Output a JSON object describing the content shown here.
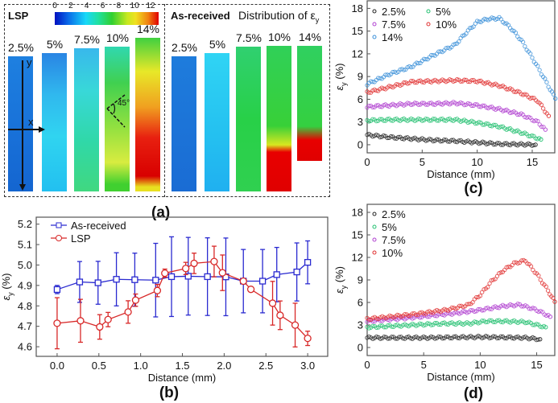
{
  "panel_a": {
    "label": "(a)",
    "lsp_title": "LSP",
    "asreceived_title": "As-received",
    "distribution_title": "Distribution of ε",
    "distribution_sub": "y",
    "colorbar_ticks": [
      "0",
      "2",
      "4",
      "6",
      "8",
      "10",
      "12"
    ],
    "colorbar_range": [
      0,
      13
    ],
    "axis_x": "x",
    "axis_y": "y",
    "angle": "45°",
    "lsp_strips": [
      "2.5%",
      "5%",
      "7.5%",
      "10%",
      "14%"
    ],
    "asreceived_strips": [
      "2.5%",
      "5%",
      "7.5%",
      "10%",
      "14%"
    ]
  },
  "chart_data": [
    {
      "id": "b",
      "panel_label": "(b)",
      "type": "line",
      "xlabel": "Distance (mm)",
      "ylabel": "ε",
      "ylabel_sub": "y",
      "ylabel_unit": " (%)",
      "xlim": [
        -0.25,
        3.24
      ],
      "ylim": [
        4.553,
        5.234
      ],
      "xticks": [
        0.0,
        0.5,
        1.0,
        1.5,
        2.0,
        2.5,
        3.0
      ],
      "xtick_labels": [
        "0.0",
        "0.5",
        "1.0",
        "1.5",
        "2.0",
        "2.5",
        "3.0"
      ],
      "yticks": [
        4.6,
        4.7,
        4.8,
        4.9,
        5.0,
        5.1,
        5.2
      ],
      "ytick_labels": [
        "4.6",
        "4.7",
        "4.8",
        "4.9",
        "5.0",
        "5.1",
        "5.2"
      ],
      "legend": "top-left",
      "grid": false,
      "series": [
        {
          "name": "As-received",
          "color": "#2a2ad0",
          "marker": "square",
          "x": [
            0,
            0.27,
            0.49,
            0.71,
            0.93,
            1.18,
            1.37,
            1.57,
            1.8,
            2.02,
            2.23,
            2.46,
            2.63,
            2.87,
            3.0
          ],
          "y": [
            4.88,
            4.917,
            4.913,
            4.93,
            4.928,
            4.926,
            4.943,
            4.945,
            4.943,
            4.942,
            4.921,
            4.921,
            4.953,
            4.966,
            5.013
          ],
          "err": [
            0.02,
            0.1,
            0.105,
            0.13,
            0.13,
            0.18,
            0.195,
            0.19,
            0.19,
            0.19,
            0.155,
            0.155,
            0.133,
            0.142,
            0.105
          ]
        },
        {
          "name": "LSP",
          "color": "#d82828",
          "marker": "circle",
          "x": [
            0,
            0.28,
            0.51,
            0.61,
            0.85,
            0.94,
            1.2,
            1.29,
            1.54,
            1.64,
            1.88,
            1.98,
            2.23,
            2.32,
            2.58,
            2.67,
            2.85,
            3.0
          ],
          "y": [
            4.715,
            4.727,
            4.697,
            4.733,
            4.77,
            4.828,
            4.875,
            4.96,
            4.983,
            5.008,
            5.017,
            4.962,
            4.921,
            4.881,
            4.813,
            4.754,
            4.706,
            4.641
          ],
          "err": [
            0.125,
            0.105,
            0.06,
            0.035,
            0.055,
            0.03,
            0.03,
            0.02,
            0.03,
            0.05,
            0.075,
            0.087,
            0.01,
            0.01,
            0.107,
            0.07,
            0.107,
            0.035
          ]
        }
      ]
    },
    {
      "id": "c",
      "panel_label": "(c)",
      "type": "scatter",
      "xlabel": "Distance (mm)",
      "ylabel": "ε",
      "ylabel_sub": "y",
      "ylabel_unit": " (%)",
      "xlim": [
        0,
        17.05
      ],
      "ylim": [
        -1.07,
        19.0
      ],
      "xticks": [
        0,
        5,
        10,
        15
      ],
      "xtick_labels": [
        "0",
        "5",
        "10",
        "15"
      ],
      "yticks": [
        0,
        3,
        6,
        9,
        12,
        15,
        18
      ],
      "ytick_labels": [
        "0",
        "3",
        "6",
        "9",
        "12",
        "15",
        "18"
      ],
      "legend": "top-left",
      "grid": false,
      "series": [
        {
          "name": "2.5%",
          "color": "#222222",
          "x": [
            0,
            2,
            4,
            6,
            8,
            10,
            12,
            14,
            15.3
          ],
          "y": [
            1.3,
            1.0,
            0.8,
            0.6,
            0.5,
            0.3,
            0.1,
            0.05,
            0.0
          ]
        },
        {
          "name": "5%",
          "color": "#22c070",
          "x": [
            0,
            2,
            4,
            6,
            8,
            10,
            12,
            14,
            15.8
          ],
          "y": [
            3.2,
            3.3,
            3.3,
            3.3,
            3.3,
            2.9,
            2.4,
            1.6,
            0.7
          ]
        },
        {
          "name": "7.5%",
          "color": "#b040d0",
          "x": [
            0,
            2,
            4,
            6,
            8,
            10,
            12,
            14,
            15.5,
            16.2
          ],
          "y": [
            5.0,
            5.2,
            5.4,
            5.4,
            5.5,
            5.2,
            4.7,
            4.0,
            3.0,
            2.0
          ]
        },
        {
          "name": "10%",
          "color": "#e03030",
          "x": [
            0,
            2,
            4,
            6,
            8,
            10,
            12,
            14,
            15.5,
            16.5
          ],
          "y": [
            6.9,
            7.6,
            8.3,
            8.4,
            8.5,
            8.4,
            7.8,
            6.8,
            5.8,
            3.8
          ]
        },
        {
          "name": "14%",
          "color": "#3a8fd8",
          "x": [
            0,
            2,
            4,
            6,
            8,
            9,
            10,
            11,
            12,
            13,
            14,
            15,
            16,
            17.1
          ],
          "y": [
            8.0,
            9.3,
            10.3,
            11.8,
            13.2,
            14.8,
            16.2,
            16.6,
            16.7,
            15.5,
            13.8,
            11.5,
            9.0,
            6.1
          ]
        }
      ]
    },
    {
      "id": "d",
      "panel_label": "(d)",
      "type": "scatter",
      "xlabel": "Distance (mm)",
      "ylabel": "ε",
      "ylabel_sub": "y",
      "ylabel_unit": " (%)",
      "xlim": [
        0,
        16.6
      ],
      "ylim": [
        -1.07,
        19.07
      ],
      "xticks": [
        0,
        5,
        10,
        15
      ],
      "xtick_labels": [
        "0",
        "5",
        "10",
        "15"
      ],
      "yticks": [
        0,
        3,
        6,
        9,
        12,
        15,
        18
      ],
      "ytick_labels": [
        "0",
        "3",
        "6",
        "9",
        "12",
        "15",
        "18"
      ],
      "legend": "top-left",
      "grid": false,
      "series": [
        {
          "name": "2.5%",
          "color": "#222222",
          "x": [
            0,
            5,
            10,
            14,
            15.3
          ],
          "y": [
            1.3,
            1.3,
            1.4,
            1.3,
            1.1
          ]
        },
        {
          "name": "5%",
          "color": "#22c070",
          "x": [
            0,
            4,
            7,
            9,
            10.5,
            12,
            14,
            15.8
          ],
          "y": [
            2.7,
            3.0,
            3.2,
            3.2,
            3.5,
            3.5,
            3.4,
            2.7
          ]
        },
        {
          "name": "7.5%",
          "color": "#b040d0",
          "x": [
            0,
            4,
            8,
            10,
            12,
            13.5,
            15,
            16.2
          ],
          "y": [
            3.5,
            4.0,
            4.6,
            5.0,
            5.5,
            5.7,
            5.0,
            4.1
          ]
        },
        {
          "name": "10%",
          "color": "#e03030",
          "x": [
            0,
            4,
            7,
            9,
            10,
            11,
            12,
            13,
            14,
            15,
            16,
            16.6
          ],
          "y": [
            3.8,
            4.4,
            5.0,
            5.7,
            7.0,
            8.8,
            10.2,
            11.2,
            11.6,
            9.8,
            7.6,
            6.1
          ]
        }
      ]
    }
  ]
}
